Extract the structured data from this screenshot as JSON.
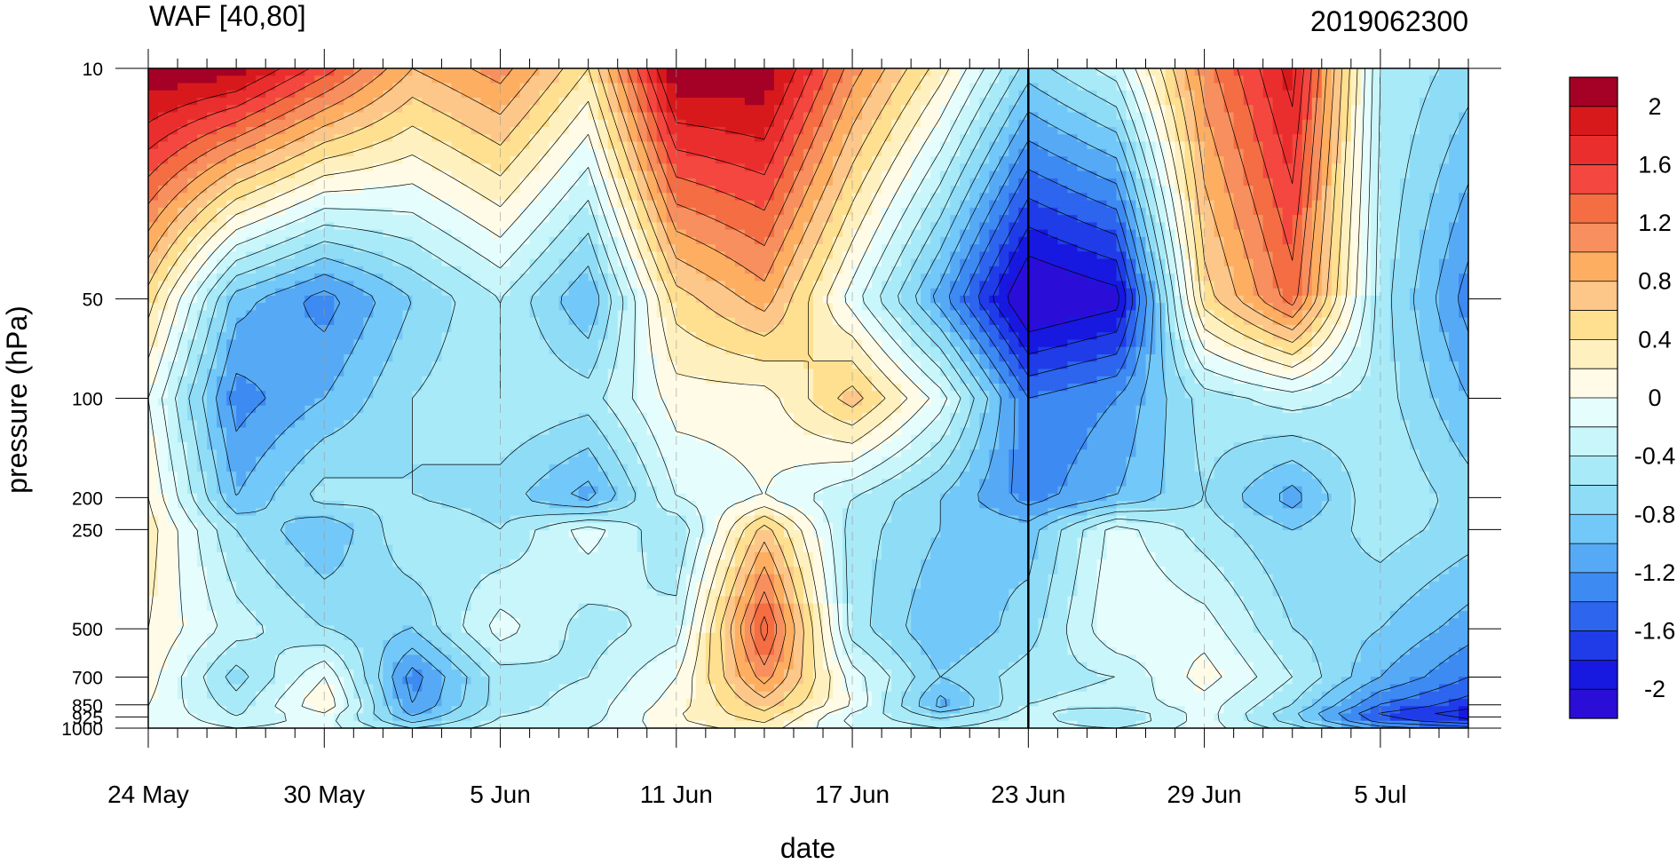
{
  "chart_data": {
    "type": "heatmap",
    "title": "WAF [40,80]",
    "subtitle": "2019062300",
    "xlabel": "date",
    "ylabel": "pressure (hPa)",
    "x_tick_labels": [
      "24 May",
      "30 May",
      "5 Jun",
      "11 Jun",
      "17 Jun",
      "23 Jun",
      "29 Jun",
      "5 Jul"
    ],
    "x_range_days": [
      0,
      45
    ],
    "y_ticks": [
      10,
      50,
      100,
      200,
      250,
      500,
      700,
      850,
      925,
      1000
    ],
    "y_scale": "log",
    "y_range": [
      10,
      1000
    ],
    "reference_line_date": "23 Jun",
    "colorbar": {
      "tick_labels": [
        "2",
        "1.6",
        "1.2",
        "0.8",
        "0.4",
        "0",
        "-0.4",
        "-0.8",
        "-1.2",
        "-1.6",
        "-2"
      ],
      "levels": [
        2.2,
        2.0,
        1.8,
        1.6,
        1.4,
        1.2,
        1.0,
        0.8,
        0.6,
        0.4,
        0.2,
        0.0,
        -0.2,
        -0.4,
        -0.6,
        -0.8,
        -1.0,
        -1.2,
        -1.4,
        -1.6,
        -1.8,
        -2.0
      ],
      "colors": [
        "#a50026",
        "#d7191c",
        "#ea2e2e",
        "#f4473f",
        "#f46d43",
        "#f88f5e",
        "#fdae61",
        "#fdc78a",
        "#fee090",
        "#fff1bf",
        "#fffbe6",
        "#e6fdfd",
        "#c9f6fb",
        "#a8eaf8",
        "#8fdcf7",
        "#72c8f8",
        "#56aaf5",
        "#3d8af2",
        "#2d65ee",
        "#1f3ce8",
        "#1718e0",
        "#2a0ed8"
      ]
    },
    "grid_values": {
      "x_days": [
        0,
        3,
        6,
        9,
        12,
        15,
        18,
        21,
        24,
        27,
        30,
        33,
        36,
        39,
        42,
        45
      ],
      "p_levels": [
        10,
        50,
        100,
        200,
        250,
        500,
        700,
        850,
        925,
        1000
      ],
      "rows": [
        [
          2.3,
          2.2,
          1.6,
          0.9,
          1.2,
          0.5,
          2.3,
          2.3,
          1.2,
          0.4,
          -0.6,
          -0.2,
          1.2,
          2.0,
          -0.3,
          -0.6
        ],
        [
          0.6,
          -0.8,
          -1.2,
          -0.7,
          -0.3,
          -0.9,
          0.6,
          1.0,
          0.0,
          -1.0,
          -2.2,
          -2.0,
          0.6,
          1.4,
          -0.4,
          -1.2
        ],
        [
          0.1,
          -1.2,
          -0.9,
          -0.5,
          -0.3,
          -0.4,
          0.2,
          0.2,
          0.8,
          0.0,
          -1.3,
          -1.1,
          -0.4,
          -0.2,
          -0.4,
          -0.9
        ],
        [
          0.3,
          -0.9,
          -0.4,
          -0.5,
          -0.6,
          -1.0,
          -0.1,
          0.1,
          -0.3,
          -0.7,
          -1.2,
          -0.9,
          -0.5,
          -1.0,
          -0.3,
          -0.6
        ],
        [
          0.4,
          -0.5,
          -0.9,
          -0.3,
          -0.5,
          0.0,
          -0.5,
          0.8,
          -0.4,
          -0.7,
          -0.8,
          0.0,
          -0.4,
          -0.7,
          -0.4,
          -0.6
        ],
        [
          0.3,
          -0.2,
          -0.5,
          -0.7,
          0.0,
          -0.4,
          -0.2,
          1.6,
          -0.4,
          -0.9,
          -0.6,
          0.1,
          0.0,
          -0.5,
          -0.7,
          -1.0
        ],
        [
          0.2,
          -0.6,
          0.1,
          -1.2,
          -0.4,
          -0.3,
          0.1,
          1.2,
          0.0,
          -0.7,
          -0.4,
          -0.3,
          0.2,
          -0.3,
          -0.9,
          -1.3
        ],
        [
          0.1,
          -0.4,
          0.3,
          -1.1,
          -0.4,
          -0.2,
          0.2,
          0.8,
          0.1,
          -1.0,
          -0.3,
          -0.2,
          0.0,
          -0.5,
          -1.3,
          -1.6
        ],
        [
          0.1,
          -0.3,
          0.0,
          -0.9,
          -0.3,
          -0.2,
          0.3,
          0.6,
          -0.2,
          -0.5,
          -0.2,
          -0.6,
          0.0,
          -0.7,
          -1.6,
          -1.9
        ],
        [
          0.1,
          -0.1,
          0.0,
          -0.5,
          -0.2,
          -0.1,
          0.2,
          0.4,
          -0.1,
          -0.3,
          -0.2,
          -0.3,
          0.0,
          -0.4,
          -1.0,
          -1.2
        ]
      ]
    }
  }
}
